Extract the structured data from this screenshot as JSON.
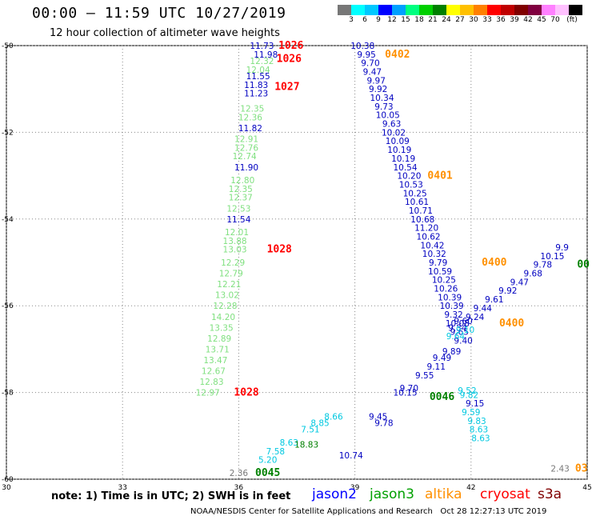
{
  "title": "00:00 – 11:59 UTC 10/27/2019",
  "subtitle": "12 hour collection of altimeter wave heights",
  "colorbar": {
    "colors": [
      "#777777",
      "#00ffff",
      "#00c8ff",
      "#0000ff",
      "#00a0ff",
      "#00ff80",
      "#00d000",
      "#008000",
      "#ffff00",
      "#ffc000",
      "#ff8000",
      "#ff0000",
      "#c00000",
      "#800000",
      "#800040",
      "#ff80ff",
      "#ffc0ff",
      "#000000"
    ],
    "labels": [
      "3",
      "6",
      "9",
      "12",
      "15",
      "18",
      "21",
      "24",
      "27",
      "30",
      "33",
      "36",
      "39",
      "42",
      "45",
      "70",
      "(ft)"
    ]
  },
  "axes": {
    "x_ticks": [
      "30",
      "33",
      "36",
      "39",
      "42",
      "45"
    ],
    "y_ticks": [
      "-50",
      "-52",
      "-54",
      "-56",
      "-58",
      "-60"
    ]
  },
  "tracks": [
    {
      "name": "jason2-west",
      "color": "#0000c0",
      "points": [
        {
          "lon": 36.6,
          "lat": -50.0,
          "v": "11.73"
        },
        {
          "lon": 36.7,
          "lat": -50.2,
          "v": "11.98"
        },
        {
          "lon": 36.5,
          "lat": -50.7,
          "v": "11.55"
        },
        {
          "lon": 36.45,
          "lat": -50.9,
          "v": "11.83"
        },
        {
          "lon": 36.45,
          "lat": -51.1,
          "v": "11.23"
        },
        {
          "lon": 36.3,
          "lat": -51.9,
          "v": "11.82"
        },
        {
          "lon": 36.2,
          "lat": -52.8,
          "v": "11.90"
        },
        {
          "lon": 36.0,
          "lat": -54.0,
          "v": "11.54"
        }
      ]
    },
    {
      "name": "jason3-west",
      "color": "#80e080",
      "points": [
        {
          "lon": 36.6,
          "lat": -50.35,
          "v": "12.32"
        },
        {
          "lon": 36.5,
          "lat": -50.55,
          "v": "12.04"
        },
        {
          "lon": 36.35,
          "lat": -51.45,
          "v": "12.35"
        },
        {
          "lon": 36.3,
          "lat": -51.65,
          "v": "12.36"
        },
        {
          "lon": 36.2,
          "lat": -52.15,
          "v": "12.91"
        },
        {
          "lon": 36.2,
          "lat": -52.35,
          "v": "12.76"
        },
        {
          "lon": 36.15,
          "lat": -52.55,
          "v": "12.74"
        },
        {
          "lon": 36.1,
          "lat": -53.1,
          "v": "12.80"
        },
        {
          "lon": 36.05,
          "lat": -53.3,
          "v": "12.35"
        },
        {
          "lon": 36.05,
          "lat": -53.5,
          "v": "12.37"
        },
        {
          "lon": 36.0,
          "lat": -53.75,
          "v": "12.53"
        },
        {
          "lon": 35.95,
          "lat": -54.3,
          "v": "12.01"
        },
        {
          "lon": 35.9,
          "lat": -54.5,
          "v": "13.88"
        },
        {
          "lon": 35.9,
          "lat": -54.7,
          "v": "13.03"
        },
        {
          "lon": 35.85,
          "lat": -55.0,
          "v": "12.29"
        },
        {
          "lon": 35.8,
          "lat": -55.25,
          "v": "12.79"
        },
        {
          "lon": 35.75,
          "lat": -55.5,
          "v": "12.21"
        },
        {
          "lon": 35.7,
          "lat": -55.75,
          "v": "13.02"
        },
        {
          "lon": 35.65,
          "lat": -56.0,
          "v": "12.28"
        },
        {
          "lon": 35.6,
          "lat": -56.25,
          "v": "14.20"
        },
        {
          "lon": 35.55,
          "lat": -56.5,
          "v": "13.35"
        },
        {
          "lon": 35.5,
          "lat": -56.75,
          "v": "12.89"
        },
        {
          "lon": 35.45,
          "lat": -57.0,
          "v": "13.71"
        },
        {
          "lon": 35.4,
          "lat": -57.25,
          "v": "13.47"
        },
        {
          "lon": 35.35,
          "lat": -57.5,
          "v": "12.67"
        },
        {
          "lon": 35.3,
          "lat": -57.75,
          "v": "12.83"
        },
        {
          "lon": 35.2,
          "lat": -58.0,
          "v": "12.97"
        }
      ]
    },
    {
      "name": "jason2-diag",
      "color": "#0000c0",
      "points": [
        {
          "lon": 39.2,
          "lat": -50.0,
          "v": "10.38"
        },
        {
          "lon": 39.3,
          "lat": -50.2,
          "v": "9.95"
        },
        {
          "lon": 39.4,
          "lat": -50.4,
          "v": "9.70"
        },
        {
          "lon": 39.45,
          "lat": -50.6,
          "v": "9.47"
        },
        {
          "lon": 39.55,
          "lat": -50.8,
          "v": "9.97"
        },
        {
          "lon": 39.6,
          "lat": -51.0,
          "v": "9.92"
        },
        {
          "lon": 39.7,
          "lat": -51.2,
          "v": "10.34"
        },
        {
          "lon": 39.75,
          "lat": -51.4,
          "v": "9.73"
        },
        {
          "lon": 39.85,
          "lat": -51.6,
          "v": "10.05"
        },
        {
          "lon": 39.95,
          "lat": -51.8,
          "v": "9.63"
        },
        {
          "lon": 40.0,
          "lat": -52.0,
          "v": "10.02"
        },
        {
          "lon": 40.1,
          "lat": -52.2,
          "v": "10.09"
        },
        {
          "lon": 40.15,
          "lat": -52.4,
          "v": "10.19"
        },
        {
          "lon": 40.25,
          "lat": -52.6,
          "v": "10.19"
        },
        {
          "lon": 40.3,
          "lat": -52.8,
          "v": "10.54"
        },
        {
          "lon": 40.4,
          "lat": -53.0,
          "v": "10.20"
        },
        {
          "lon": 40.45,
          "lat": -53.2,
          "v": "10.53"
        },
        {
          "lon": 40.55,
          "lat": -53.4,
          "v": "10.25"
        },
        {
          "lon": 40.6,
          "lat": -53.6,
          "v": "10.61"
        },
        {
          "lon": 40.7,
          "lat": -53.8,
          "v": "10.71"
        },
        {
          "lon": 40.75,
          "lat": -54.0,
          "v": "10.68"
        },
        {
          "lon": 40.85,
          "lat": -54.2,
          "v": "11.20"
        },
        {
          "lon": 40.9,
          "lat": -54.4,
          "v": "10.62"
        },
        {
          "lon": 41.0,
          "lat": -54.6,
          "v": "10.42"
        },
        {
          "lon": 41.05,
          "lat": -54.8,
          "v": "10.32"
        },
        {
          "lon": 41.15,
          "lat": -55.0,
          "v": "9.79"
        },
        {
          "lon": 41.2,
          "lat": -55.2,
          "v": "10.59"
        },
        {
          "lon": 41.3,
          "lat": -55.4,
          "v": "10.25"
        },
        {
          "lon": 41.35,
          "lat": -55.6,
          "v": "10.26"
        },
        {
          "lon": 41.45,
          "lat": -55.8,
          "v": "10.39"
        },
        {
          "lon": 41.5,
          "lat": -56.0,
          "v": "10.39"
        },
        {
          "lon": 41.55,
          "lat": -56.2,
          "v": "9.32"
        },
        {
          "lon": 41.65,
          "lat": -56.4,
          "v": "10.08"
        },
        {
          "lon": 41.7,
          "lat": -56.6,
          "v": "9.65"
        },
        {
          "lon": 41.8,
          "lat": -56.8,
          "v": "9.40"
        }
      ]
    },
    {
      "name": "jason2-east",
      "color": "#0000c0",
      "points": [
        {
          "lon": 38.9,
          "lat": -59.45,
          "v": "10.74"
        },
        {
          "lon": 39.75,
          "lat": -58.7,
          "v": "9.78"
        },
        {
          "lon": 39.6,
          "lat": -58.55,
          "v": "9.45"
        },
        {
          "lon": 40.3,
          "lat": -58.0,
          "v": "10.15"
        },
        {
          "lon": 40.4,
          "lat": -57.9,
          "v": "9.70"
        },
        {
          "lon": 40.8,
          "lat": -57.6,
          "v": "9.55"
        },
        {
          "lon": 41.1,
          "lat": -57.4,
          "v": "9.11"
        },
        {
          "lon": 41.25,
          "lat": -57.2,
          "v": "9.49"
        },
        {
          "lon": 41.5,
          "lat": -57.05,
          "v": "9.89"
        },
        {
          "lon": 41.65,
          "lat": -56.5,
          "v": "9.34"
        },
        {
          "lon": 41.8,
          "lat": -56.35,
          "v": "9.60"
        },
        {
          "lon": 42.1,
          "lat": -56.25,
          "v": "9.24"
        },
        {
          "lon": 42.3,
          "lat": -56.05,
          "v": "9.44"
        },
        {
          "lon": 42.6,
          "lat": -55.85,
          "v": "9.61"
        },
        {
          "lon": 42.95,
          "lat": -55.65,
          "v": "9.92"
        },
        {
          "lon": 43.25,
          "lat": -55.45,
          "v": "9.47"
        },
        {
          "lon": 43.6,
          "lat": -55.25,
          "v": "9.68"
        },
        {
          "lon": 43.85,
          "lat": -55.05,
          "v": "9.78"
        },
        {
          "lon": 44.1,
          "lat": -54.85,
          "v": "10.15"
        },
        {
          "lon": 44.35,
          "lat": -54.65,
          "v": "9.9"
        },
        {
          "lon": 42.1,
          "lat": -58.25,
          "v": "9.15"
        }
      ]
    },
    {
      "name": "cyan-south",
      "color": "#00c8e0",
      "points": [
        {
          "lon": 36.75,
          "lat": -59.55,
          "v": "5.20"
        },
        {
          "lon": 36.95,
          "lat": -59.35,
          "v": "7.58"
        },
        {
          "lon": 37.3,
          "lat": -59.15,
          "v": "8.63"
        },
        {
          "lon": 37.85,
          "lat": -58.85,
          "v": "7.51"
        },
        {
          "lon": 38.1,
          "lat": -58.7,
          "v": "8.85"
        },
        {
          "lon": 38.45,
          "lat": -58.55,
          "v": "8.66"
        },
        {
          "lon": 41.6,
          "lat": -56.7,
          "v": "9.64"
        },
        {
          "lon": 41.85,
          "lat": -56.55,
          "v": "9.10"
        },
        {
          "lon": 41.9,
          "lat": -57.95,
          "v": "9.52"
        },
        {
          "lon": 41.95,
          "lat": -58.05,
          "v": "9.82"
        },
        {
          "lon": 42.0,
          "lat": -58.45,
          "v": "9.59"
        },
        {
          "lon": 42.15,
          "lat": -58.65,
          "v": "9.83"
        },
        {
          "lon": 42.2,
          "lat": -58.85,
          "v": "8.63"
        },
        {
          "lon": 42.25,
          "lat": -59.05,
          "v": "8.63"
        }
      ]
    },
    {
      "name": "jason3-south",
      "color": "#008000",
      "points": [
        {
          "lon": 37.75,
          "lat": -59.2,
          "v": "18.83"
        }
      ]
    },
    {
      "name": "grey",
      "color": "#777777",
      "points": [
        {
          "lon": 36.0,
          "lat": -59.85,
          "v": "2.36"
        },
        {
          "lon": 44.3,
          "lat": -59.75,
          "v": "2.43"
        }
      ]
    }
  ],
  "time_labels": [
    {
      "text": "1026",
      "color": "#ff0000",
      "lon": 37.35,
      "lat": -50.0
    },
    {
      "text": "1026",
      "color": "#ff0000",
      "lon": 37.3,
      "lat": -50.3
    },
    {
      "text": "1027",
      "color": "#ff0000",
      "lon": 37.25,
      "lat": -50.95
    },
    {
      "text": "1028",
      "color": "#ff0000",
      "lon": 37.05,
      "lat": -54.7
    },
    {
      "text": "1028",
      "color": "#ff0000",
      "lon": 36.2,
      "lat": -58.0
    },
    {
      "text": "0402",
      "color": "#ff9000",
      "lon": 40.1,
      "lat": -50.2
    },
    {
      "text": "0401",
      "color": "#ff9000",
      "lon": 41.2,
      "lat": -53.0
    },
    {
      "text": "0400",
      "color": "#ff9000",
      "lon": 42.6,
      "lat": -55.0
    },
    {
      "text": "0400",
      "color": "#ff9000",
      "lon": 43.05,
      "lat": -56.4
    },
    {
      "text": "0046",
      "color": "#008000",
      "lon": 41.25,
      "lat": -58.1
    },
    {
      "text": "0045",
      "color": "#008000",
      "lon": 36.75,
      "lat": -59.85
    },
    {
      "text": "00",
      "color": "#008000",
      "lon": 44.9,
      "lat": -55.05
    },
    {
      "text": "03",
      "color": "#ff9000",
      "lon": 44.85,
      "lat": -59.75
    }
  ],
  "note": "note: 1) Time is in UTC; 2) SWH is in feet",
  "legend": [
    {
      "label": "jason2",
      "color": "#0000ff"
    },
    {
      "label": "jason3",
      "color": "#00a000"
    },
    {
      "label": "altika",
      "color": "#ff9000"
    },
    {
      "label": "cryosat",
      "color": "#ff0000"
    },
    {
      "label": "s3a",
      "color": "#800000"
    }
  ],
  "footer": "NOAA/NESDIS Center for Satellite Applications and Research   Oct 28 12:27:13 UTC 2019"
}
